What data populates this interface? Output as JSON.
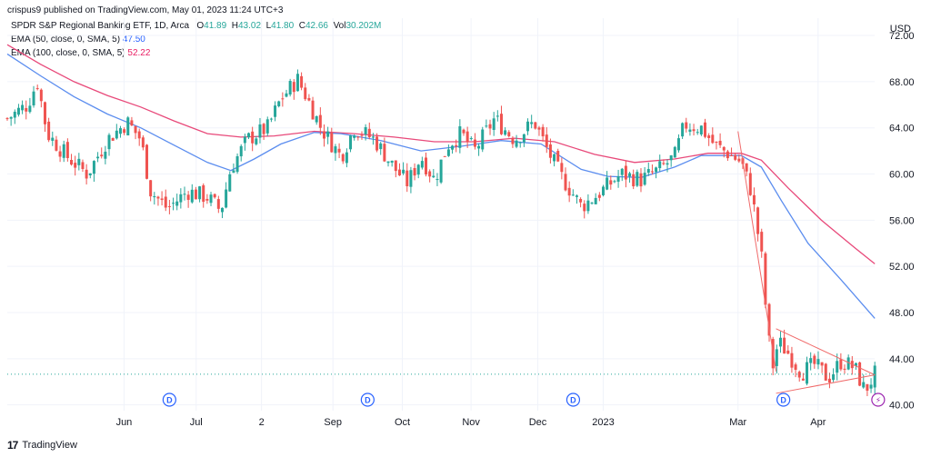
{
  "header": {
    "publisher": "crispus9 published on TradingView.com, May 01, 2023 11:24 UTC+3"
  },
  "legend": {
    "symbol_line": "SPDR S&P Regional Banking ETF, 1D, Arca",
    "ohlc": [
      {
        "label": "O",
        "value": "41.89"
      },
      {
        "label": "H",
        "value": "43.02"
      },
      {
        "label": "L",
        "value": "41.80"
      },
      {
        "label": "C",
        "value": "42.66"
      }
    ],
    "vol_label": "Vol",
    "vol_value": "30.202M",
    "ema50_label": "EMA (50, close, 0, SMA, 5)",
    "ema50_value": "47.50",
    "ema100_label": "EMA (100, close, 0, SMA, 5)",
    "ema100_value": "52.22"
  },
  "currency": "USD",
  "footer": {
    "logo": "17",
    "brand": "TradingView"
  },
  "colors": {
    "up": "#26a69a",
    "down": "#ef5350",
    "ema50": "#5b8def",
    "ema100": "#e8497a",
    "trendline": "#f06a6a",
    "grid": "#f0f3fa",
    "dividend": "#2962ff",
    "split": "#9c27b0"
  },
  "chart_data": {
    "type": "candlestick",
    "y_ticks": [
      "72.00",
      "68.00",
      "64.00",
      "60.00",
      "56.00",
      "52.00",
      "48.00",
      "44.00",
      "40.00"
    ],
    "ylim": [
      39.5,
      73.5
    ],
    "x_ticks": [
      {
        "label": "Jun",
        "t": 0.175
      },
      {
        "label": "Jul",
        "t": 0.283
      },
      {
        "label": "2",
        "t": 0.381
      },
      {
        "label": "Sep",
        "t": 0.488
      },
      {
        "label": "Oct",
        "t": 0.592
      },
      {
        "label": "Nov",
        "t": 0.695
      },
      {
        "label": "Dec",
        "t": 0.795
      },
      {
        "label": "2023",
        "t": 0.893
      },
      {
        "label": "Mar",
        "t": 1.095
      },
      {
        "label": "Apr",
        "t": 1.215
      }
    ],
    "event_markers": [
      {
        "type": "D",
        "t": 0.243
      },
      {
        "type": "D",
        "t": 0.54
      },
      {
        "type": "D",
        "t": 0.848
      },
      {
        "type": "D",
        "t": 1.163
      },
      {
        "type": "split",
        "t": 1.305
      }
    ],
    "price_path": [
      [
        0.0,
        64.8
      ],
      [
        0.03,
        66.0
      ],
      [
        0.045,
        68.0
      ],
      [
        0.06,
        63.5
      ],
      [
        0.09,
        61.5
      ],
      [
        0.12,
        60.0
      ],
      [
        0.15,
        63.0
      ],
      [
        0.18,
        64.5
      ],
      [
        0.2,
        63.0
      ],
      [
        0.215,
        58.5
      ],
      [
        0.24,
        57.0
      ],
      [
        0.27,
        58.5
      ],
      [
        0.3,
        58.0
      ],
      [
        0.32,
        56.8
      ],
      [
        0.335,
        60.5
      ],
      [
        0.36,
        63.0
      ],
      [
        0.39,
        64.0
      ],
      [
        0.41,
        66.5
      ],
      [
        0.435,
        68.2
      ],
      [
        0.45,
        66.5
      ],
      [
        0.47,
        64.0
      ],
      [
        0.5,
        61.5
      ],
      [
        0.52,
        64.0
      ],
      [
        0.55,
        63.0
      ],
      [
        0.58,
        60.5
      ],
      [
        0.6,
        59.2
      ],
      [
        0.62,
        61.5
      ],
      [
        0.64,
        59.5
      ],
      [
        0.66,
        62.5
      ],
      [
        0.68,
        63.5
      ],
      [
        0.7,
        62.0
      ],
      [
        0.73,
        64.8
      ],
      [
        0.76,
        63.0
      ],
      [
        0.79,
        64.5
      ],
      [
        0.81,
        62.0
      ],
      [
        0.83,
        59.8
      ],
      [
        0.86,
        57.2
      ],
      [
        0.88,
        58.0
      ],
      [
        0.9,
        59.0
      ],
      [
        0.92,
        60.0
      ],
      [
        0.95,
        59.5
      ],
      [
        0.98,
        60.5
      ],
      [
        1.0,
        61.5
      ],
      [
        1.015,
        64.3
      ],
      [
        1.04,
        64.0
      ],
      [
        1.06,
        62.5
      ],
      [
        1.08,
        61.8
      ],
      [
        1.1,
        61.0
      ],
      [
        1.115,
        58.5
      ],
      [
        1.13,
        53.0
      ],
      [
        1.14,
        46.0
      ],
      [
        1.148,
        43.2
      ],
      [
        1.155,
        45.5
      ],
      [
        1.17,
        44.5
      ],
      [
        1.19,
        42.8
      ],
      [
        1.21,
        43.5
      ],
      [
        1.23,
        42.3
      ],
      [
        1.25,
        43.8
      ],
      [
        1.27,
        43.2
      ],
      [
        1.285,
        41.2
      ],
      [
        1.3,
        42.66
      ]
    ],
    "ema50_path": [
      [
        0.0,
        70.4
      ],
      [
        0.05,
        68.5
      ],
      [
        0.1,
        66.7
      ],
      [
        0.15,
        65.2
      ],
      [
        0.2,
        64.0
      ],
      [
        0.25,
        62.5
      ],
      [
        0.3,
        61.0
      ],
      [
        0.335,
        60.3
      ],
      [
        0.37,
        61.3
      ],
      [
        0.41,
        62.6
      ],
      [
        0.46,
        63.6
      ],
      [
        0.5,
        63.5
      ],
      [
        0.56,
        62.9
      ],
      [
        0.62,
        62.0
      ],
      [
        0.68,
        62.4
      ],
      [
        0.74,
        62.9
      ],
      [
        0.8,
        62.6
      ],
      [
        0.86,
        60.4
      ],
      [
        0.9,
        59.8
      ],
      [
        0.95,
        59.7
      ],
      [
        1.0,
        60.6
      ],
      [
        1.04,
        61.6
      ],
      [
        1.1,
        61.6
      ],
      [
        1.13,
        60.6
      ],
      [
        1.16,
        57.7
      ],
      [
        1.2,
        54.0
      ],
      [
        1.25,
        50.8
      ],
      [
        1.3,
        47.5
      ]
    ],
    "ema100_path": [
      [
        0.0,
        71.2
      ],
      [
        0.05,
        69.5
      ],
      [
        0.1,
        68.0
      ],
      [
        0.15,
        66.8
      ],
      [
        0.2,
        65.8
      ],
      [
        0.25,
        64.6
      ],
      [
        0.3,
        63.5
      ],
      [
        0.35,
        63.2
      ],
      [
        0.4,
        63.3
      ],
      [
        0.46,
        63.7
      ],
      [
        0.52,
        63.5
      ],
      [
        0.58,
        63.2
      ],
      [
        0.64,
        62.8
      ],
      [
        0.7,
        62.8
      ],
      [
        0.76,
        63.1
      ],
      [
        0.82,
        62.8
      ],
      [
        0.88,
        61.7
      ],
      [
        0.94,
        61.0
      ],
      [
        1.0,
        61.3
      ],
      [
        1.05,
        61.8
      ],
      [
        1.1,
        61.8
      ],
      [
        1.13,
        61.2
      ],
      [
        1.17,
        58.8
      ],
      [
        1.22,
        56.0
      ],
      [
        1.27,
        53.6
      ],
      [
        1.3,
        52.22
      ]
    ],
    "trendlines": [
      [
        [
          1.095,
          63.7
        ],
        [
          1.152,
          42.9
        ]
      ],
      [
        [
          1.152,
          46.6
        ],
        [
          1.3,
          42.6
        ]
      ],
      [
        [
          1.152,
          41.0
        ],
        [
          1.3,
          42.6
        ]
      ]
    ],
    "last_price": 42.66,
    "grid": true,
    "legend_position": "top-left"
  }
}
